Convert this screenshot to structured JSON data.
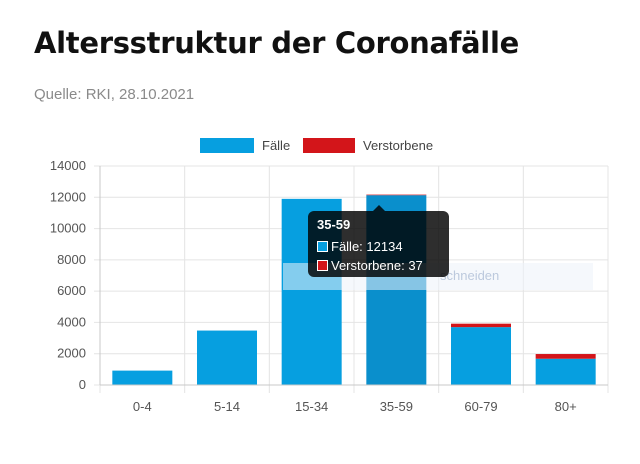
{
  "header": {
    "title": "Altersstruktur der Coronafälle",
    "source": "Quelle: RKI, 28.10.2021"
  },
  "colors": {
    "cases": "#069fe0",
    "deaths": "#d3151a",
    "grid": "#e4e4e4"
  },
  "chart_data": {
    "type": "bar",
    "stacked": true,
    "categories": [
      "0-4",
      "5-14",
      "15-34",
      "35-59",
      "60-79",
      "80+"
    ],
    "series": [
      {
        "name": "Fälle",
        "values": [
          920,
          3480,
          11900,
          12134,
          3700,
          1680
        ]
      },
      {
        "name": "Verstorbene",
        "values": [
          0,
          0,
          0,
          37,
          220,
          300
        ]
      }
    ],
    "ylim": [
      0,
      14000
    ],
    "yticks": [
      0,
      2000,
      4000,
      6000,
      8000,
      10000,
      12000,
      14000
    ],
    "grid": true,
    "legend_position": "top-center",
    "active_category": "35-59"
  },
  "tooltip": {
    "title": "35-59",
    "rows": [
      {
        "label": "Fälle: 12134"
      },
      {
        "label": "Verstorbene: 37"
      }
    ]
  },
  "overlay": {
    "ghost_text": "schneiden"
  }
}
